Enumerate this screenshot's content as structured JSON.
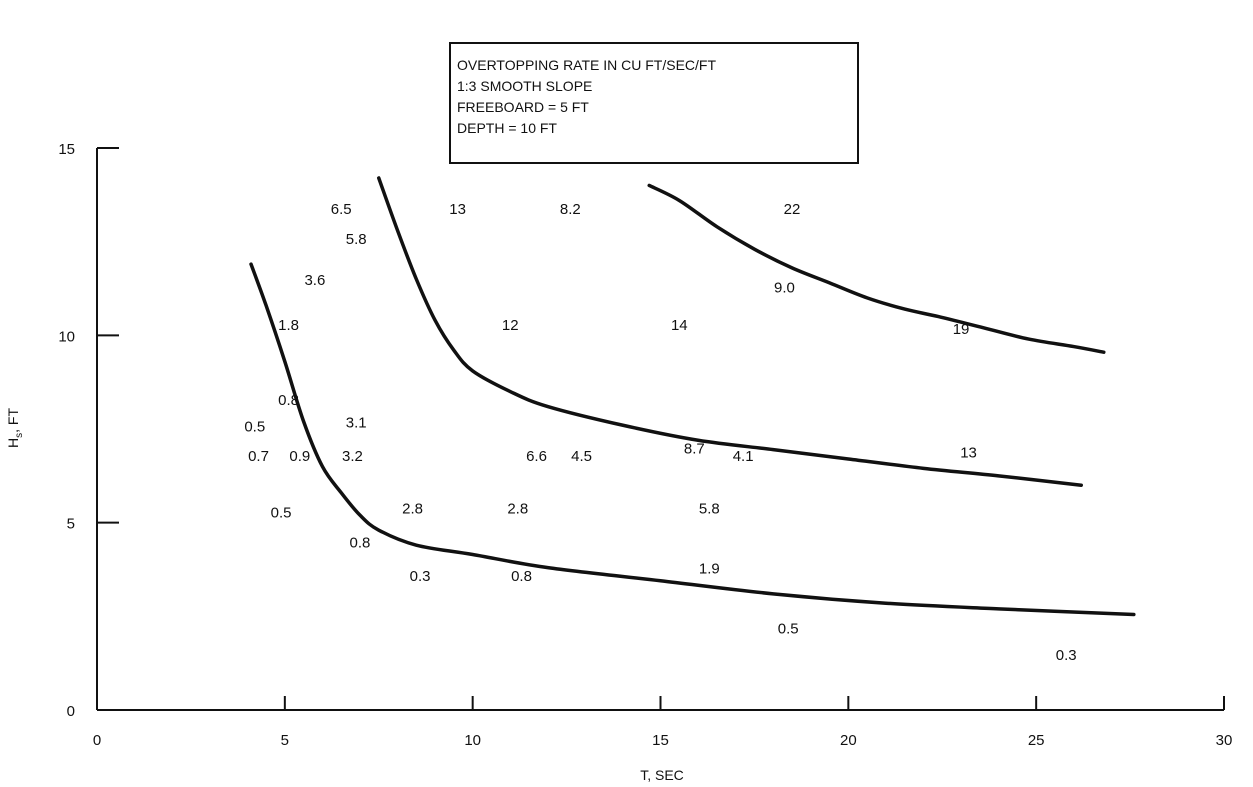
{
  "chart_data": {
    "type": "scatter",
    "title_box": [
      "OVERTOPPING RATE IN CU FT/SEC/FT",
      "1:3 SMOOTH SLOPE",
      "FREEBOARD = 5 FT",
      "DEPTH = 10 FT"
    ],
    "xlabel": "T, SEC",
    "ylabel": "Hs, FT",
    "xlim": [
      0,
      30
    ],
    "ylim": [
      0,
      15
    ],
    "xticks": [
      "0",
      "5",
      "10",
      "15",
      "20",
      "25",
      "30"
    ],
    "yticks": [
      "0",
      "5",
      "10",
      "15"
    ],
    "grid": false,
    "data_points": [
      {
        "x": 6.5,
        "y": 13.4,
        "label": "6.5"
      },
      {
        "x": 6.9,
        "y": 12.6,
        "label": "5.8"
      },
      {
        "x": 5.8,
        "y": 11.5,
        "label": "3.6"
      },
      {
        "x": 5.1,
        "y": 10.3,
        "label": "1.8"
      },
      {
        "x": 5.1,
        "y": 8.3,
        "label": "0.8"
      },
      {
        "x": 4.2,
        "y": 7.6,
        "label": "0.5"
      },
      {
        "x": 6.9,
        "y": 7.7,
        "label": "3.1"
      },
      {
        "x": 4.3,
        "y": 6.8,
        "label": "0.7"
      },
      {
        "x": 5.4,
        "y": 6.8,
        "label": "0.9"
      },
      {
        "x": 6.8,
        "y": 6.8,
        "label": "3.2"
      },
      {
        "x": 4.9,
        "y": 5.3,
        "label": "0.5"
      },
      {
        "x": 7.0,
        "y": 4.5,
        "label": "0.8"
      },
      {
        "x": 8.4,
        "y": 5.4,
        "label": "2.8"
      },
      {
        "x": 8.6,
        "y": 3.6,
        "label": "0.3"
      },
      {
        "x": 9.6,
        "y": 13.4,
        "label": "13"
      },
      {
        "x": 12.6,
        "y": 13.4,
        "label": "8.2"
      },
      {
        "x": 11.0,
        "y": 10.3,
        "label": "12"
      },
      {
        "x": 15.5,
        "y": 10.3,
        "label": "14"
      },
      {
        "x": 11.7,
        "y": 6.8,
        "label": "6.6"
      },
      {
        "x": 12.9,
        "y": 6.8,
        "label": "4.5"
      },
      {
        "x": 15.9,
        "y": 7.0,
        "label": "8.7"
      },
      {
        "x": 17.2,
        "y": 6.8,
        "label": "4.1"
      },
      {
        "x": 11.2,
        "y": 5.4,
        "label": "2.8"
      },
      {
        "x": 11.3,
        "y": 3.6,
        "label": "0.8"
      },
      {
        "x": 16.3,
        "y": 5.4,
        "label": "5.8"
      },
      {
        "x": 16.3,
        "y": 3.8,
        "label": "1.9"
      },
      {
        "x": 18.5,
        "y": 13.4,
        "label": "22"
      },
      {
        "x": 18.3,
        "y": 11.3,
        "label": "9.0"
      },
      {
        "x": 23.0,
        "y": 10.2,
        "label": "19"
      },
      {
        "x": 23.2,
        "y": 6.9,
        "label": "13"
      },
      {
        "x": 18.4,
        "y": 2.2,
        "label": "0.5"
      },
      {
        "x": 25.8,
        "y": 1.5,
        "label": "0.3"
      }
    ],
    "curves": [
      {
        "points": [
          [
            4.1,
            11.9
          ],
          [
            4.5,
            10.8
          ],
          [
            5.0,
            9.3
          ],
          [
            5.5,
            7.7
          ],
          [
            6.0,
            6.5
          ],
          [
            6.5,
            5.8
          ],
          [
            7.0,
            5.2
          ],
          [
            7.5,
            4.8
          ],
          [
            8.5,
            4.4
          ],
          [
            10,
            4.15
          ],
          [
            12,
            3.8
          ],
          [
            15,
            3.45
          ],
          [
            18,
            3.1
          ],
          [
            21,
            2.85
          ],
          [
            24,
            2.7
          ],
          [
            27.6,
            2.55
          ]
        ]
      },
      {
        "points": [
          [
            7.5,
            14.2
          ],
          [
            8.0,
            12.8
          ],
          [
            8.5,
            11.5
          ],
          [
            9.0,
            10.4
          ],
          [
            9.5,
            9.6
          ],
          [
            10.0,
            9.05
          ],
          [
            11.0,
            8.5
          ],
          [
            12.0,
            8.1
          ],
          [
            14.0,
            7.6
          ],
          [
            16.0,
            7.2
          ],
          [
            18.0,
            6.95
          ],
          [
            20.0,
            6.7
          ],
          [
            22.0,
            6.45
          ],
          [
            24.0,
            6.25
          ],
          [
            26.2,
            6.0
          ]
        ]
      },
      {
        "points": [
          [
            14.7,
            14.0
          ],
          [
            15.5,
            13.6
          ],
          [
            16.5,
            12.9
          ],
          [
            17.5,
            12.3
          ],
          [
            18.5,
            11.8
          ],
          [
            19.5,
            11.4
          ],
          [
            20.5,
            11.0
          ],
          [
            21.5,
            10.7
          ],
          [
            22.4,
            10.5
          ],
          [
            23.6,
            10.2
          ],
          [
            24.8,
            9.9
          ],
          [
            26.0,
            9.7
          ],
          [
            26.8,
            9.55
          ]
        ]
      }
    ]
  }
}
